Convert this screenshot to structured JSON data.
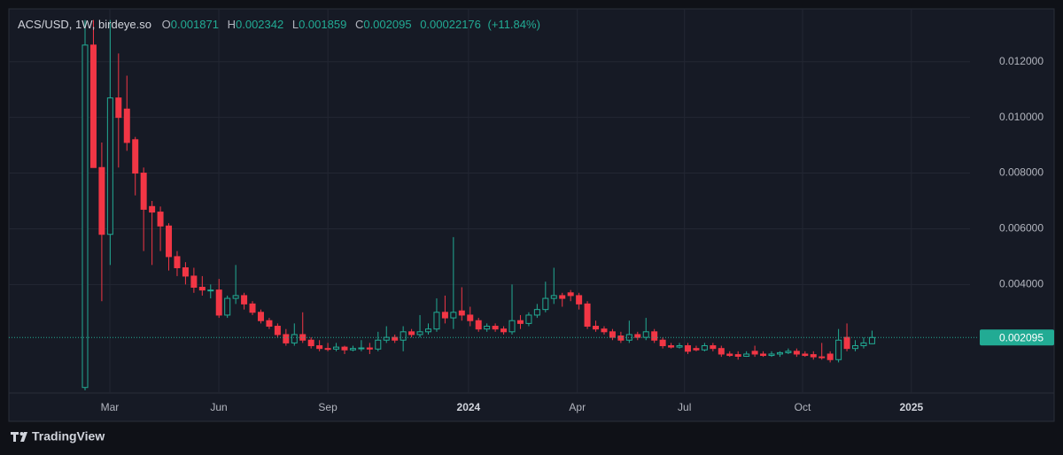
{
  "chart_data": {
    "type": "candlestick",
    "title": "ACS/USD, 1W, birdeye.so",
    "ohlc_header": {
      "open_label": "O",
      "open": 0.001871,
      "high_label": "H",
      "high": 0.002342,
      "low_label": "L",
      "low": 0.001859,
      "close_label": "C",
      "close": 0.002095,
      "change": 0.00022176,
      "change_percent": "(+11.84%)"
    },
    "up_color": "#22ab94",
    "down_color": "#f23645",
    "last_price": 0.002095,
    "xlim": [
      -9.1,
      105.7
    ],
    "xticks": [
      {
        "value": 2.96,
        "label": "Mar"
      },
      {
        "value": 15.98,
        "label": "Jun"
      },
      {
        "value": 29.0,
        "label": "Sep"
      },
      {
        "value": 45.8,
        "label": "2024"
      },
      {
        "value": 58.8,
        "label": "Apr"
      },
      {
        "value": 71.6,
        "label": "Jul"
      },
      {
        "value": 85.7,
        "label": "Oct"
      },
      {
        "value": 98.7,
        "label": "2025"
      }
    ],
    "ylim": [
      0.0001,
      0.0139
    ],
    "yticks": [
      {
        "value": 0.004,
        "label": "0.004000"
      },
      {
        "value": 0.006,
        "label": "0.006000"
      },
      {
        "value": 0.008,
        "label": "0.008000"
      },
      {
        "value": 0.01,
        "label": "0.010000"
      },
      {
        "value": 0.012,
        "label": "0.012000"
      }
    ],
    "grid": true,
    "x": [
      0,
      1,
      2,
      3,
      4,
      5,
      6,
      7,
      8,
      9,
      10,
      11,
      12,
      13,
      14,
      15,
      16,
      17,
      18,
      19,
      20,
      21,
      22,
      23,
      24,
      25,
      26,
      27,
      28,
      29,
      30,
      31,
      32,
      33,
      34,
      35,
      36,
      37,
      38,
      39,
      40,
      41,
      42,
      43,
      44,
      45,
      46,
      47,
      48,
      49,
      50,
      51,
      52,
      53,
      54,
      55,
      56,
      57,
      58,
      59,
      60,
      61,
      62,
      63,
      64,
      65,
      66,
      67,
      68,
      69,
      70,
      71,
      72,
      73,
      74,
      75,
      76,
      77,
      78,
      79,
      80,
      81,
      82,
      83,
      84,
      85,
      86,
      87,
      88,
      89,
      90,
      91,
      92,
      93,
      94
    ],
    "open": [
      0.0003,
      0.0126,
      0.0082,
      0.0058,
      0.0107,
      0.0103,
      0.0092,
      0.008,
      0.0068,
      0.0066,
      0.0061,
      0.005,
      0.0046,
      0.0043,
      0.0039,
      0.0038,
      0.0038,
      0.0029,
      0.0035,
      0.0036,
      0.0033,
      0.003,
      0.0027,
      0.0025,
      0.0022,
      0.0019,
      0.0022,
      0.002,
      0.0018,
      0.0017,
      0.00168,
      0.00175,
      0.00165,
      0.0017,
      0.00172,
      0.00168,
      0.002,
      0.0021,
      0.002,
      0.0023,
      0.0022,
      0.0023,
      0.0024,
      0.003,
      0.0028,
      0.00305,
      0.0029,
      0.0027,
      0.0024,
      0.0025,
      0.0024,
      0.0023,
      0.0027,
      0.0026,
      0.0029,
      0.0031,
      0.0035,
      0.0036,
      0.0037,
      0.0036,
      0.0033,
      0.0025,
      0.0024,
      0.0023,
      0.00215,
      0.002,
      0.0022,
      0.0021,
      0.0023,
      0.002,
      0.0018,
      0.00175,
      0.0018,
      0.0017,
      0.00165,
      0.0018,
      0.0017,
      0.0015,
      0.00148,
      0.00142,
      0.0016,
      0.0015,
      0.00145,
      0.0015,
      0.00155,
      0.0016,
      0.0015,
      0.00148,
      0.0014,
      0.0015,
      0.0013,
      0.0021,
      0.0017,
      0.0018,
      0.001871
    ],
    "high": [
      0.0135,
      0.0135,
      0.0091,
      0.0135,
      0.0123,
      0.0115,
      0.0093,
      0.0082,
      0.007,
      0.0068,
      0.0062,
      0.0052,
      0.0048,
      0.0046,
      0.0043,
      0.004,
      0.0042,
      0.0036,
      0.0047,
      0.0037,
      0.0034,
      0.0031,
      0.0028,
      0.0026,
      0.0024,
      0.0026,
      0.003,
      0.0021,
      0.002,
      0.0019,
      0.0019,
      0.0018,
      0.0018,
      0.002,
      0.0019,
      0.0023,
      0.0025,
      0.0022,
      0.0025,
      0.0024,
      0.0029,
      0.0026,
      0.0035,
      0.0036,
      0.0057,
      0.0039,
      0.0032,
      0.0028,
      0.0026,
      0.0026,
      0.0025,
      0.004,
      0.0029,
      0.003,
      0.0033,
      0.0041,
      0.0046,
      0.0037,
      0.0038,
      0.0037,
      0.0034,
      0.0027,
      0.0025,
      0.0024,
      0.0023,
      0.0027,
      0.0023,
      0.0028,
      0.0024,
      0.0021,
      0.0019,
      0.0019,
      0.0019,
      0.0018,
      0.0019,
      0.0019,
      0.0018,
      0.0016,
      0.0016,
      0.0016,
      0.0018,
      0.0016,
      0.0016,
      0.0016,
      0.0017,
      0.0017,
      0.0016,
      0.0016,
      0.0019,
      0.0016,
      0.0024,
      0.0026,
      0.002,
      0.0021,
      0.002342
    ],
    "low": [
      0.0002,
      0.0082,
      0.0034,
      0.0047,
      0.0082,
      0.0088,
      0.0072,
      0.0052,
      0.0047,
      0.0052,
      0.0045,
      0.0043,
      0.004,
      0.0037,
      0.0036,
      0.0035,
      0.0028,
      0.0028,
      0.0033,
      0.0031,
      0.0029,
      0.0026,
      0.0024,
      0.0021,
      0.0018,
      0.0018,
      0.0019,
      0.0017,
      0.0016,
      0.0016,
      0.0016,
      0.0015,
      0.0016,
      0.0016,
      0.0015,
      0.0016,
      0.0019,
      0.0019,
      0.0016,
      0.0021,
      0.0021,
      0.0022,
      0.0023,
      0.0026,
      0.0024,
      0.0027,
      0.0025,
      0.0023,
      0.0023,
      0.0023,
      0.0022,
      0.0022,
      0.0024,
      0.0025,
      0.0028,
      0.003,
      0.0033,
      0.0032,
      0.0034,
      0.0031,
      0.0024,
      0.0023,
      0.0022,
      0.002,
      0.0019,
      0.0019,
      0.002,
      0.002,
      0.0019,
      0.0017,
      0.0017,
      0.0017,
      0.0015,
      0.0016,
      0.0016,
      0.0016,
      0.0014,
      0.0014,
      0.0013,
      0.0014,
      0.0014,
      0.0014,
      0.0014,
      0.0014,
      0.0015,
      0.0014,
      0.0014,
      0.0013,
      0.0013,
      0.0012,
      0.0012,
      0.0016,
      0.0016,
      0.0017,
      0.001859
    ],
    "close": [
      0.0126,
      0.0082,
      0.0058,
      0.0107,
      0.01,
      0.0091,
      0.008,
      0.0067,
      0.0066,
      0.0061,
      0.005,
      0.0046,
      0.0043,
      0.0039,
      0.0038,
      0.0038,
      0.0029,
      0.0035,
      0.0036,
      0.0033,
      0.003,
      0.0027,
      0.0025,
      0.0022,
      0.0019,
      0.0022,
      0.002,
      0.0018,
      0.0017,
      0.00168,
      0.00175,
      0.00165,
      0.0017,
      0.00172,
      0.00168,
      0.002,
      0.0021,
      0.002,
      0.0023,
      0.0022,
      0.0023,
      0.0024,
      0.003,
      0.0028,
      0.003,
      0.0029,
      0.0027,
      0.0024,
      0.0025,
      0.0024,
      0.0023,
      0.0027,
      0.0026,
      0.0029,
      0.0031,
      0.0035,
      0.0036,
      0.0035,
      0.0036,
      0.0033,
      0.0025,
      0.0024,
      0.0023,
      0.0021,
      0.002,
      0.0022,
      0.0021,
      0.0023,
      0.002,
      0.0018,
      0.00175,
      0.0018,
      0.0016,
      0.00165,
      0.0018,
      0.0017,
      0.0015,
      0.00145,
      0.00142,
      0.0015,
      0.0015,
      0.00145,
      0.0015,
      0.00155,
      0.0016,
      0.0015,
      0.00145,
      0.0014,
      0.00138,
      0.0013,
      0.002,
      0.0017,
      0.0018,
      0.0019,
      0.002095
    ],
    "footer": "TradingView"
  }
}
